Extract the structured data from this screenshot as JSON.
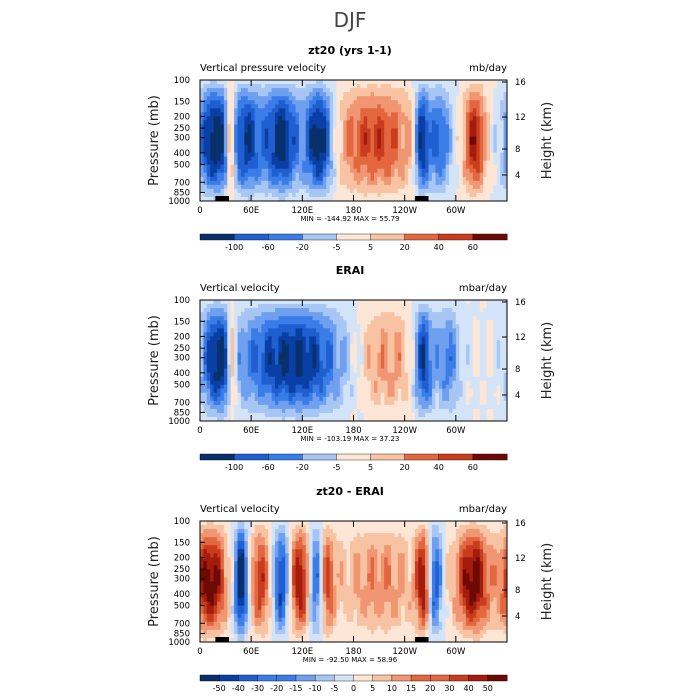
{
  "figure": {
    "suptitle": "DJF",
    "colors": {
      "diverging": [
        "#08306b",
        "#0a3fa5",
        "#1f5fd0",
        "#3a7de8",
        "#6fa0ef",
        "#a8c6f4",
        "#d4e4f8",
        "#fde6d6",
        "#f8c3a3",
        "#f09672",
        "#e2673f",
        "#c93c1e",
        "#a51c0c",
        "#6e0a05"
      ]
    }
  },
  "chart_data": [
    {
      "type": "heatmap",
      "title": "zt20 (yrs 1-1)",
      "left_label": "Vertical pressure velocity",
      "right_label": "mb/day",
      "ylabel": "Pressure (mb)",
      "ylabel_right": "Height (km)",
      "xticks": [
        "0",
        "60E",
        "120E",
        "180",
        "120W",
        "60W"
      ],
      "yticks": [
        "100",
        "150",
        "200",
        "250",
        "300",
        "400",
        "500",
        "700",
        "850",
        "1000"
      ],
      "yticks_right": [
        "16",
        "12",
        "8",
        "4"
      ],
      "stats": "MIN = -144.92   MAX =  55.79",
      "colorbar_labels": [
        "-100",
        "-60",
        "-20",
        "-5",
        "5",
        "20",
        "40",
        "60"
      ],
      "features": [
        {
          "lon": 18,
          "w": 14,
          "v": -0.9
        },
        {
          "lon": 36,
          "w": 4,
          "v": 0.8
        },
        {
          "lon": 55,
          "w": 12,
          "v": -0.7
        },
        {
          "lon": 95,
          "w": 15,
          "v": -0.85
        },
        {
          "lon": 140,
          "w": 12,
          "v": -0.95
        },
        {
          "lon": 205,
          "w": 35,
          "v": 0.55
        },
        {
          "lon": 260,
          "w": 6,
          "v": -0.85
        },
        {
          "lon": 280,
          "w": 10,
          "v": -0.6
        },
        {
          "lon": 322,
          "w": 9,
          "v": 0.7
        }
      ]
    },
    {
      "type": "heatmap",
      "title": "ERAI",
      "left_label": "Vertical velocity",
      "right_label": "mbar/day",
      "ylabel": "Pressure (mb)",
      "ylabel_right": "Height (km)",
      "xticks": [
        "0",
        "60E",
        "120E",
        "180",
        "120W",
        "60W"
      ],
      "yticks": [
        "100",
        "150",
        "200",
        "250",
        "300",
        "400",
        "500",
        "700",
        "850",
        "1000"
      ],
      "yticks_right": [
        "16",
        "12",
        "8",
        "4"
      ],
      "stats": "MIN = -103.19   MAX =  37.23",
      "colorbar_labels": [
        "-100",
        "-60",
        "-20",
        "-5",
        "5",
        "20",
        "40",
        "60"
      ],
      "features": [
        {
          "lon": 20,
          "w": 12,
          "v": -0.75
        },
        {
          "lon": 38,
          "w": 4,
          "v": 0.6
        },
        {
          "lon": 110,
          "w": 45,
          "v": -0.8
        },
        {
          "lon": 215,
          "w": 30,
          "v": 0.35
        },
        {
          "lon": 262,
          "w": 8,
          "v": -0.8
        },
        {
          "lon": 290,
          "w": 10,
          "v": -0.45
        }
      ]
    },
    {
      "type": "heatmap",
      "title": "zt20 - ERAI",
      "left_label": "Vertical velocity",
      "right_label": "mbar/day",
      "ylabel": "Pressure (mb)",
      "ylabel_right": "Height (km)",
      "xticks": [
        "0",
        "60E",
        "120E",
        "180",
        "120W",
        "60W"
      ],
      "yticks": [
        "100",
        "150",
        "200",
        "250",
        "300",
        "400",
        "500",
        "700",
        "850",
        "1000"
      ],
      "yticks_right": [
        "16",
        "12",
        "8",
        "4"
      ],
      "stats": "MIN = -92.50   MAX =  58.96",
      "colorbar_labels": [
        "-50",
        "-40",
        "-30",
        "-20",
        "-15",
        "-10",
        "-5",
        "0",
        "5",
        "10",
        "15",
        "20",
        "30",
        "40",
        "50"
      ],
      "features": [
        {
          "lon": 12,
          "w": 14,
          "v": 0.85
        },
        {
          "lon": 48,
          "w": 6,
          "v": -0.95
        },
        {
          "lon": 70,
          "w": 8,
          "v": 0.6
        },
        {
          "lon": 95,
          "w": 6,
          "v": -0.7
        },
        {
          "lon": 118,
          "w": 8,
          "v": 0.75
        },
        {
          "lon": 135,
          "w": 6,
          "v": -0.6
        },
        {
          "lon": 150,
          "w": 6,
          "v": 0.5
        },
        {
          "lon": 210,
          "w": 35,
          "v": 0.35
        },
        {
          "lon": 262,
          "w": 6,
          "v": 0.7
        },
        {
          "lon": 275,
          "w": 6,
          "v": -0.7
        },
        {
          "lon": 320,
          "w": 14,
          "v": 0.85
        }
      ]
    }
  ]
}
